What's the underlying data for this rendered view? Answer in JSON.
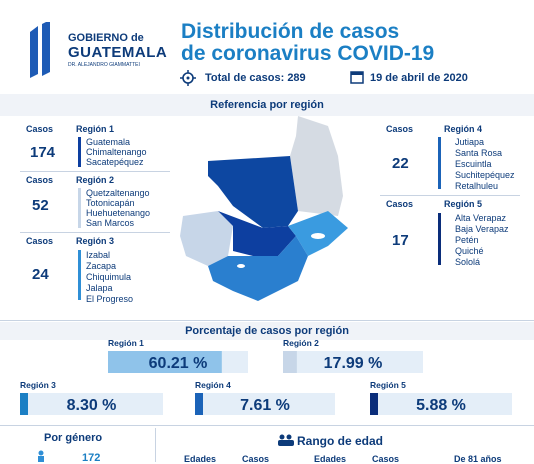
{
  "logo": {
    "line1": "GOBIERNO de",
    "line2": "GUATEMALA",
    "line3": "DR. ALEJANDRO GIAMMATTEI"
  },
  "title": {
    "line1": "Distribución de casos",
    "line2": "de coronavirus COVID-19"
  },
  "total_cases": "Total de casos: 289",
  "date": "19 de abril de 2020",
  "map_heading": "Referencia por región",
  "cases_label": "Casos",
  "regions": [
    {
      "name": "Región 1",
      "cases": "174",
      "color": "#0d3fa0",
      "departments": [
        "Guatemala",
        "Chimaltenango",
        "Sacatepéquez"
      ]
    },
    {
      "name": "Región 2",
      "cases": "52",
      "color": "#c7d6e8",
      "departments": [
        "Quetzaltenango",
        "Totonicapán",
        "Huehuetenango",
        "San Marcos"
      ]
    },
    {
      "name": "Región 3",
      "cases": "24",
      "color": "#2f8fd6",
      "departments": [
        "Izabal",
        "Zacapa",
        "Chiquimula",
        "Jalapa",
        "El Progreso"
      ]
    },
    {
      "name": "Región 4",
      "cases": "22",
      "color": "#1b63b8",
      "departments": [
        "Jutiapa",
        "Santa Rosa",
        "Escuintla",
        "Suchitepéquez",
        "Retalhuleu"
      ]
    },
    {
      "name": "Región 5",
      "cases": "17",
      "color": "#0a2d7a",
      "departments": [
        "Alta Verapaz",
        "Baja Verapaz",
        "Petén",
        "Quiché",
        "Sololá"
      ]
    }
  ],
  "percent_heading": "Porcentaje de casos por región",
  "chart_data": {
    "type": "bar",
    "title": "Porcentaje de casos por región",
    "categories": [
      "Región 1",
      "Región 2",
      "Región 3",
      "Región 4",
      "Región 5"
    ],
    "values": [
      60.21,
      17.99,
      8.3,
      7.61,
      5.88
    ],
    "value_labels": [
      "60.21",
      "17.99",
      "8.30",
      "7.61",
      "5.88"
    ],
    "unit": "%",
    "ylim": [
      0,
      100
    ]
  },
  "gender_heading": "Por género",
  "gender_value": "172",
  "age_heading": "Rango de edad",
  "age_col_edades": "Edades",
  "age_col_casos": "Casos",
  "age_extra": "De 81 años",
  "colors": {
    "navy": "#0d3b7a",
    "accent": "#1b7fc4",
    "light_bar": "#dbe9f6"
  }
}
